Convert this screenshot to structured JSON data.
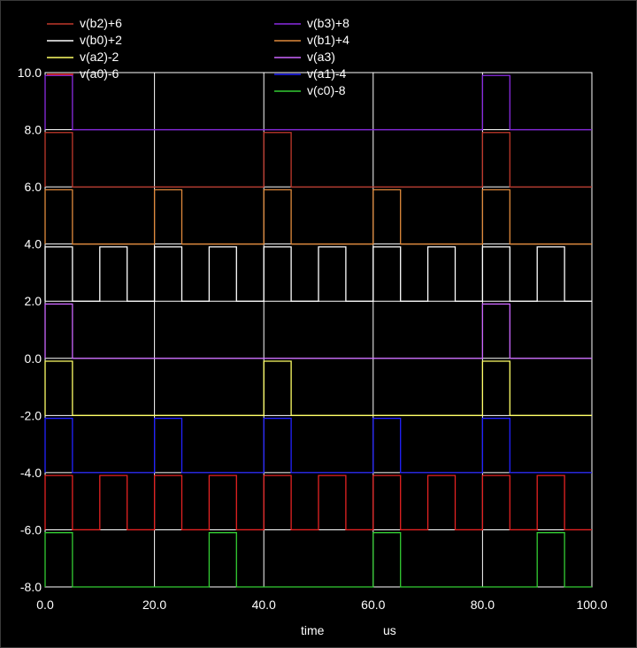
{
  "chart_data": {
    "type": "line",
    "xlabel": "time",
    "xunit": "us",
    "xlim": [
      0,
      100
    ],
    "ylim": [
      -8,
      10
    ],
    "x_ticks": [
      "0.0",
      "20.0",
      "40.0",
      "60.0",
      "80.0",
      "100.0"
    ],
    "y_ticks": [
      "10.0",
      "8.0",
      "6.0",
      "4.0",
      "2.0",
      "0.0",
      "-2.0",
      "-4.0",
      "-6.0",
      "-8.0"
    ],
    "grid": true,
    "legend_position": "top",
    "series": [
      {
        "name": "v(b2)+6",
        "color": "#c0392b",
        "base": 6,
        "high": 1.9,
        "period": 40,
        "pulses": [
          [
            0,
            5
          ],
          [
            40,
            45
          ],
          [
            80,
            85
          ]
        ]
      },
      {
        "name": "v(b0)+2",
        "color": "#ffffff",
        "base": 2,
        "high": 1.9,
        "period": 10,
        "pulses": [
          [
            0,
            5
          ],
          [
            10,
            15
          ],
          [
            20,
            25
          ],
          [
            30,
            35
          ],
          [
            40,
            45
          ],
          [
            50,
            55
          ],
          [
            60,
            65
          ],
          [
            70,
            75
          ],
          [
            80,
            85
          ],
          [
            90,
            95
          ]
        ]
      },
      {
        "name": "v(a2)-2",
        "color": "#ffff66",
        "base": -2,
        "high": 1.9,
        "period": 40,
        "pulses": [
          [
            0,
            5
          ],
          [
            40,
            45
          ],
          [
            80,
            85
          ]
        ]
      },
      {
        "name": "v(a0)-6",
        "color": "#e52222",
        "base": -6,
        "high": 1.9,
        "period": 10,
        "pulses": [
          [
            0,
            5
          ],
          [
            10,
            15
          ],
          [
            20,
            25
          ],
          [
            30,
            35
          ],
          [
            40,
            45
          ],
          [
            50,
            55
          ],
          [
            60,
            65
          ],
          [
            70,
            75
          ],
          [
            80,
            85
          ],
          [
            90,
            95
          ]
        ]
      },
      {
        "name": "v(b3)+8",
        "color": "#8a2be2",
        "base": 8,
        "high": 1.9,
        "period": 80,
        "pulses": [
          [
            0,
            5
          ],
          [
            80,
            85
          ]
        ]
      },
      {
        "name": "v(b1)+4",
        "color": "#e08a3c",
        "base": 4,
        "high": 1.9,
        "period": 20,
        "pulses": [
          [
            0,
            5
          ],
          [
            20,
            25
          ],
          [
            40,
            45
          ],
          [
            60,
            65
          ],
          [
            80,
            85
          ]
        ]
      },
      {
        "name": "v(a3)",
        "color": "#cc66ff",
        "base": 0,
        "high": 1.9,
        "period": 80,
        "pulses": [
          [
            0,
            5
          ],
          [
            80,
            85
          ]
        ]
      },
      {
        "name": "v(a1)-4",
        "color": "#2222ff",
        "base": -4,
        "high": 1.9,
        "period": 20,
        "pulses": [
          [
            0,
            5
          ],
          [
            20,
            25
          ],
          [
            40,
            45
          ],
          [
            60,
            65
          ],
          [
            80,
            85
          ]
        ]
      },
      {
        "name": "v(c0)-8",
        "color": "#33cc33",
        "base": -8,
        "high": 1.9,
        "period": 30,
        "pulses": [
          [
            0,
            5
          ],
          [
            30,
            35
          ],
          [
            60,
            65
          ],
          [
            90,
            95
          ]
        ]
      }
    ]
  }
}
